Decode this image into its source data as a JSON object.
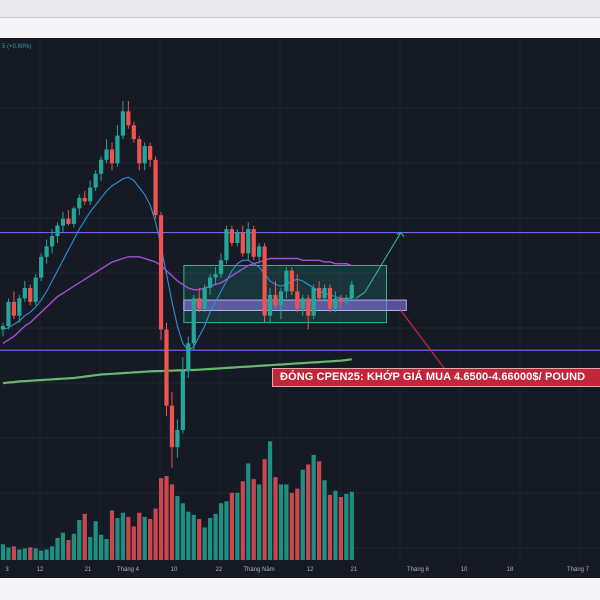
{
  "header": {
    "price_change": "5 (+0.60%)"
  },
  "annotation": {
    "callout": "ĐÓNG CPEN25: KHỚP GIÁ MUA  4.6500-4.66000$/ POUND"
  },
  "colors": {
    "background": "#161a25",
    "up": "#26a69a",
    "down": "#ef5350",
    "purple_line": "#a04fd8",
    "green_ma": "#66bb6a",
    "blue_ma": "#2f8fd8",
    "level_line": "#7b5cf0",
    "zone": "#2fb39a",
    "callout": "#c2263a"
  },
  "chart_data": {
    "type": "candlestick",
    "title": "",
    "x_tick_labels": [
      "3",
      "12",
      "21",
      "Tháng 4",
      "10",
      "22",
      "Tháng Năm",
      "12",
      "21",
      "Tháng 6",
      "10",
      "18",
      "Tháng 7"
    ],
    "candles": [
      {
        "o": 1.0,
        "h": 1.2,
        "l": 0.8,
        "c": 1.1
      },
      {
        "o": 1.1,
        "h": 1.9,
        "l": 1.0,
        "c": 1.8
      },
      {
        "o": 1.8,
        "h": 2.1,
        "l": 1.3,
        "c": 1.4
      },
      {
        "o": 1.4,
        "h": 2.0,
        "l": 1.2,
        "c": 1.9
      },
      {
        "o": 1.9,
        "h": 2.4,
        "l": 1.8,
        "c": 2.2
      },
      {
        "o": 2.2,
        "h": 2.3,
        "l": 1.7,
        "c": 1.8
      },
      {
        "o": 1.8,
        "h": 2.6,
        "l": 1.7,
        "c": 2.5
      },
      {
        "o": 2.5,
        "h": 3.2,
        "l": 2.4,
        "c": 3.1
      },
      {
        "o": 3.1,
        "h": 3.6,
        "l": 2.9,
        "c": 3.4
      },
      {
        "o": 3.4,
        "h": 3.9,
        "l": 3.2,
        "c": 3.7
      },
      {
        "o": 3.7,
        "h": 4.1,
        "l": 3.5,
        "c": 4.0
      },
      {
        "o": 4.0,
        "h": 4.4,
        "l": 3.8,
        "c": 4.2
      },
      {
        "o": 4.2,
        "h": 4.45,
        "l": 4.0,
        "c": 4.05
      },
      {
        "o": 4.05,
        "h": 4.55,
        "l": 3.95,
        "c": 4.5
      },
      {
        "o": 4.5,
        "h": 4.9,
        "l": 4.3,
        "c": 4.8
      },
      {
        "o": 4.8,
        "h": 5.0,
        "l": 4.6,
        "c": 4.7
      },
      {
        "o": 4.7,
        "h": 5.3,
        "l": 4.6,
        "c": 5.1
      },
      {
        "o": 5.1,
        "h": 5.6,
        "l": 5.0,
        "c": 5.5
      },
      {
        "o": 5.5,
        "h": 6.0,
        "l": 5.3,
        "c": 5.9
      },
      {
        "o": 5.9,
        "h": 6.5,
        "l": 5.8,
        "c": 6.2
      },
      {
        "o": 6.2,
        "h": 6.4,
        "l": 5.6,
        "c": 5.8
      },
      {
        "o": 5.8,
        "h": 6.9,
        "l": 5.7,
        "c": 6.6
      },
      {
        "o": 6.6,
        "h": 7.6,
        "l": 6.5,
        "c": 7.3
      },
      {
        "o": 7.3,
        "h": 7.6,
        "l": 6.8,
        "c": 6.9
      },
      {
        "o": 6.9,
        "h": 7.0,
        "l": 6.4,
        "c": 6.5
      },
      {
        "o": 6.5,
        "h": 6.6,
        "l": 5.6,
        "c": 5.8
      },
      {
        "o": 5.8,
        "h": 6.4,
        "l": 5.6,
        "c": 6.3
      },
      {
        "o": 6.3,
        "h": 6.4,
        "l": 5.7,
        "c": 5.9
      },
      {
        "o": 5.9,
        "h": 6.0,
        "l": 4.2,
        "c": 4.3
      },
      {
        "o": 4.3,
        "h": 4.4,
        "l": 0.7,
        "c": 1.0
      },
      {
        "o": 1.0,
        "h": 1.2,
        "l": -1.5,
        "c": -1.2
      },
      {
        "o": -1.2,
        "h": -0.8,
        "l": -3.0,
        "c": -2.4
      },
      {
        "o": -2.4,
        "h": -1.6,
        "l": -2.7,
        "c": -1.9
      },
      {
        "o": -1.9,
        "h": 0.2,
        "l": -2.0,
        "c": -0.2
      },
      {
        "o": -0.2,
        "h": 0.8,
        "l": -0.4,
        "c": 0.6
      },
      {
        "o": 0.6,
        "h": 2.0,
        "l": 0.4,
        "c": 1.9
      },
      {
        "o": 1.9,
        "h": 2.2,
        "l": 1.5,
        "c": 1.6
      },
      {
        "o": 1.6,
        "h": 2.3,
        "l": 1.5,
        "c": 2.2
      },
      {
        "o": 2.2,
        "h": 2.6,
        "l": 2.0,
        "c": 2.5
      },
      {
        "o": 2.5,
        "h": 2.8,
        "l": 2.3,
        "c": 2.6
      },
      {
        "o": 2.6,
        "h": 3.2,
        "l": 2.5,
        "c": 3.0
      },
      {
        "o": 3.0,
        "h": 4.0,
        "l": 2.9,
        "c": 3.9
      },
      {
        "o": 3.9,
        "h": 4.0,
        "l": 3.4,
        "c": 3.5
      },
      {
        "o": 3.5,
        "h": 3.9,
        "l": 3.4,
        "c": 3.8
      },
      {
        "o": 3.8,
        "h": 4.0,
        "l": 3.1,
        "c": 3.2
      },
      {
        "o": 3.2,
        "h": 4.1,
        "l": 3.0,
        "c": 3.9
      },
      {
        "o": 3.9,
        "h": 4.0,
        "l": 3.0,
        "c": 3.1
      },
      {
        "o": 3.1,
        "h": 3.5,
        "l": 2.9,
        "c": 3.4
      },
      {
        "o": 3.4,
        "h": 3.5,
        "l": 1.2,
        "c": 1.4
      },
      {
        "o": 1.4,
        "h": 2.2,
        "l": 1.2,
        "c": 2.0
      },
      {
        "o": 2.0,
        "h": 2.4,
        "l": 1.6,
        "c": 1.7
      },
      {
        "o": 1.7,
        "h": 2.2,
        "l": 1.3,
        "c": 2.1
      },
      {
        "o": 2.1,
        "h": 2.8,
        "l": 1.9,
        "c": 2.7
      },
      {
        "o": 2.7,
        "h": 2.8,
        "l": 2.0,
        "c": 2.1
      },
      {
        "o": 2.1,
        "h": 2.6,
        "l": 1.5,
        "c": 1.6
      },
      {
        "o": 1.6,
        "h": 2.0,
        "l": 1.4,
        "c": 1.9
      },
      {
        "o": 1.9,
        "h": 2.0,
        "l": 1.0,
        "c": 1.4
      },
      {
        "o": 1.4,
        "h": 2.3,
        "l": 1.3,
        "c": 2.2
      },
      {
        "o": 2.2,
        "h": 2.4,
        "l": 1.8,
        "c": 1.9
      },
      {
        "o": 1.9,
        "h": 2.3,
        "l": 1.8,
        "c": 2.2
      },
      {
        "o": 2.2,
        "h": 2.3,
        "l": 1.5,
        "c": 1.6
      },
      {
        "o": 1.6,
        "h": 2.1,
        "l": 1.5,
        "c": 1.9
      },
      {
        "o": 1.9,
        "h": 2.0,
        "l": 1.6,
        "c": 1.8
      },
      {
        "o": 1.8,
        "h": 2.0,
        "l": 1.7,
        "c": 1.9
      },
      {
        "o": 1.9,
        "h": 2.4,
        "l": 1.8,
        "c": 2.3
      }
    ],
    "volume": [
      1.5,
      1.2,
      1.3,
      1.0,
      1.1,
      1.2,
      1.1,
      0.9,
      1.0,
      1.3,
      2.1,
      2.6,
      1.9,
      2.5,
      3.8,
      4.4,
      2.2,
      3.7,
      2.4,
      2.0,
      4.7,
      4.0,
      4.5,
      4.1,
      3.2,
      4.5,
      4.1,
      3.9,
      4.9,
      7.8,
      8.0,
      7.2,
      6.1,
      5.4,
      4.6,
      4.3,
      3.9,
      3.1,
      4.0,
      4.4,
      5.4,
      5.6,
      6.4,
      6.4,
      7.5,
      9.2,
      7.7,
      7.2,
      9.6,
      11.3,
      7.9,
      7.2,
      7.2,
      6.4,
      6.8,
      8.6,
      9.1,
      10.0,
      9.4,
      7.6,
      6.2,
      6.6,
      6.0,
      6.3,
      6.5
    ],
    "levels": {
      "upper_line": 3.8,
      "lower_line": 0.4,
      "zone_top": 2.85,
      "zone_bottom": 1.2,
      "entry_band_top": 1.85,
      "entry_band_bottom": 1.55
    },
    "ma_short": [
      1.0,
      1.05,
      1.15,
      1.25,
      1.4,
      1.5,
      1.65,
      1.85,
      2.1,
      2.4,
      2.7,
      3.0,
      3.3,
      3.6,
      3.9,
      4.15,
      4.4,
      4.6,
      4.8,
      5.0,
      5.15,
      5.25,
      5.35,
      5.4,
      5.3,
      5.1,
      4.9,
      4.6,
      4.1,
      3.4,
      2.6,
      1.8,
      1.1,
      0.6,
      0.4,
      0.5,
      0.8,
      1.1,
      1.5,
      1.8,
      2.1,
      2.4,
      2.7,
      2.9,
      3.0,
      3.0,
      2.9,
      2.8,
      2.6,
      2.4,
      2.3,
      2.25,
      2.3,
      2.4,
      2.45,
      2.4,
      2.3,
      2.2,
      2.1,
      2.05,
      2.0,
      1.95,
      1.9,
      1.9,
      1.9
    ],
    "ma_mid": [
      0.6,
      0.7,
      0.8,
      0.95,
      1.1,
      1.2,
      1.35,
      1.5,
      1.65,
      1.8,
      1.95,
      2.05,
      2.15,
      2.25,
      2.35,
      2.45,
      2.55,
      2.65,
      2.75,
      2.85,
      2.95,
      3.0,
      3.05,
      3.1,
      3.1,
      3.1,
      3.05,
      3.0,
      2.95,
      2.85,
      2.7,
      2.55,
      2.4,
      2.3,
      2.2,
      2.15,
      2.15,
      2.2,
      2.25,
      2.3,
      2.35,
      2.45,
      2.55,
      2.65,
      2.75,
      2.85,
      2.9,
      2.95,
      3.0,
      3.05,
      3.05,
      3.05,
      3.05,
      3.05,
      3.05,
      3.0,
      3.0,
      3.0,
      3.0,
      2.95,
      2.95,
      2.9,
      2.9,
      2.9,
      2.85
    ],
    "ma_long": [
      -0.55,
      -0.53,
      -0.52,
      -0.5,
      -0.49,
      -0.48,
      -0.47,
      -0.46,
      -0.45,
      -0.44,
      -0.43,
      -0.42,
      -0.41,
      -0.4,
      -0.38,
      -0.36,
      -0.34,
      -0.32,
      -0.3,
      -0.29,
      -0.28,
      -0.27,
      -0.26,
      -0.25,
      -0.24,
      -0.23,
      -0.22,
      -0.21,
      -0.2,
      -0.2,
      -0.19,
      -0.19,
      -0.18,
      -0.18,
      -0.17,
      -0.17,
      -0.16,
      -0.15,
      -0.14,
      -0.13,
      -0.12,
      -0.11,
      -0.1,
      -0.09,
      -0.08,
      -0.07,
      -0.06,
      -0.05,
      -0.04,
      -0.03,
      -0.02,
      -0.01,
      0.0,
      0.01,
      0.02,
      0.03,
      0.04,
      0.05,
      0.06,
      0.07,
      0.08,
      0.09,
      0.1,
      0.12,
      0.14
    ],
    "arrow_target": 3.8
  }
}
